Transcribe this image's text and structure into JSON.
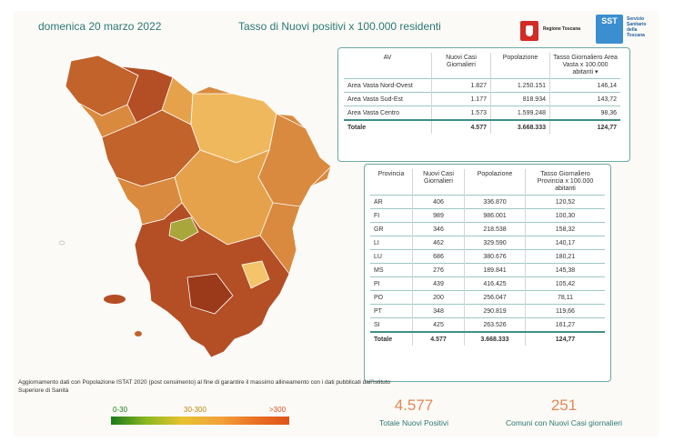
{
  "header": {
    "date": "domenica 20 marzo 2022",
    "title": "Tasso di Nuovi positivi x 100.000 residenti",
    "logo_regione": "Regione Toscana",
    "logo_sst": "SST",
    "logo_sst_text": [
      "Servizio",
      "Sanitario",
      "della",
      "Toscana"
    ]
  },
  "area_table": {
    "headers": [
      "AV",
      "Nuovi Casi Giornalieri",
      "Popolazione",
      "Tasso Giornaliero Area Vasta x 100.000 abitanti"
    ],
    "rows": [
      [
        "Area Vasta Nord-Ovest",
        "1.827",
        "1.250.151",
        "146,14"
      ],
      [
        "Area Vasta Sud-Est",
        "1.177",
        "818.934",
        "143,72"
      ],
      [
        "Area Vasta Centro",
        "1.573",
        "1.599.248",
        "98,36"
      ]
    ],
    "total": [
      "Totale",
      "4.577",
      "3.668.333",
      "124,77"
    ]
  },
  "province_table": {
    "headers": [
      "Provincia",
      "Nuovi Casi Giornalieri",
      "Popolazione",
      "Tasso Giornaliero Provincia x 100.000 abitanti"
    ],
    "rows": [
      [
        "AR",
        "406",
        "336.870",
        "120,52"
      ],
      [
        "FI",
        "989",
        "986.001",
        "100,30"
      ],
      [
        "GR",
        "346",
        "218.538",
        "158,32"
      ],
      [
        "LI",
        "462",
        "329.590",
        "140,17"
      ],
      [
        "LU",
        "686",
        "380.676",
        "180,21"
      ],
      [
        "MS",
        "276",
        "189.841",
        "145,38"
      ],
      [
        "PI",
        "439",
        "416.425",
        "105,42"
      ],
      [
        "PO",
        "200",
        "256.047",
        "78,11"
      ],
      [
        "PT",
        "348",
        "290.819",
        "119,66"
      ],
      [
        "SI",
        "425",
        "263.526",
        "161,27"
      ]
    ],
    "total": [
      "Totale",
      "4.577",
      "3.668.333",
      "124,77"
    ]
  },
  "note": "Aggiornamento dati con Popolazione ISTAT 2020 (post censimento) al fine di garantire il massimo allineamento con i dati pubblicati dall'Istituto Superiore di Sanità",
  "legend": {
    "low": "0-30",
    "mid": "30-300",
    "high": ">300",
    "colors": [
      "#1a7a1a",
      "#8bb820",
      "#e7c230",
      "#f2a03a",
      "#ea6f23",
      "#e0531a"
    ]
  },
  "kpis": {
    "total_value": "4.577",
    "total_label": "Totale Nuovi Positivi",
    "comuni_value": "251",
    "comuni_label": "Comuni con Nuovi Casi giornalieri"
  },
  "colors": {
    "accent": "#2c7873",
    "kpi": "#e28a55",
    "map_fills": [
      "#c1632a",
      "#d98a3e",
      "#e6a24b",
      "#b44e24",
      "#f0b85c",
      "#9b3a1b"
    ]
  }
}
